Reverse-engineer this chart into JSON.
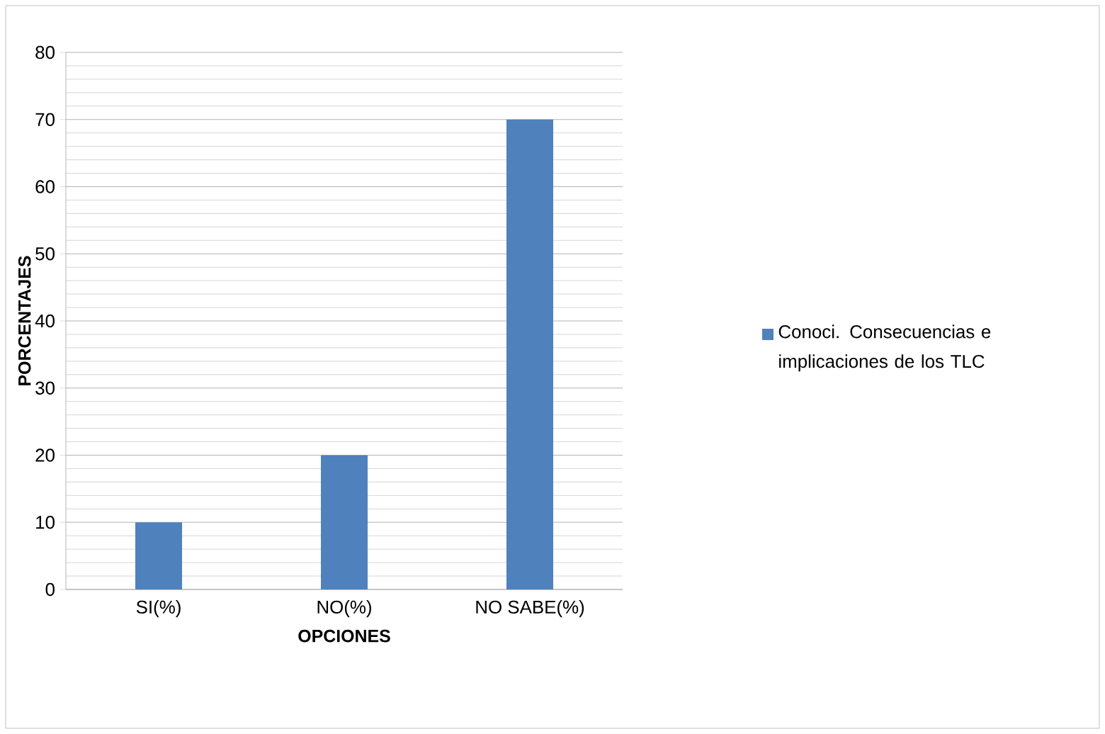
{
  "chart_data": {
    "type": "bar",
    "xlabel": "OPCIONES",
    "ylabel": "PORCENTAJES",
    "categories": [
      "SI(%)",
      "NO(%)",
      "NO SABE(%)"
    ],
    "series": [
      {
        "name": "Conoci. Consecuencias e implicaciones de los TLC",
        "color": "#4f81bd",
        "values": [
          10,
          20,
          70
        ]
      }
    ],
    "ylim": [
      0,
      80
    ],
    "yticks": [
      0,
      10,
      20,
      30,
      40,
      50,
      60,
      70,
      80
    ],
    "grid": "y",
    "legend": "right"
  }
}
